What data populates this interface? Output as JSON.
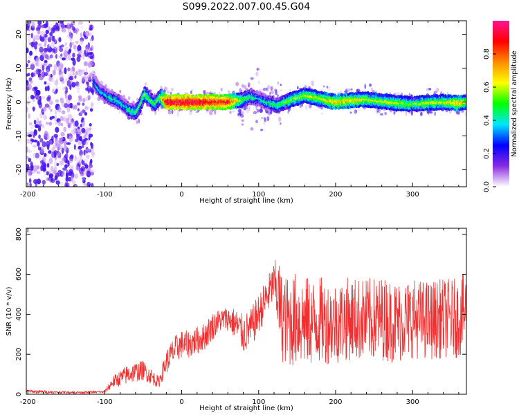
{
  "title": "S099.2022.007.00.45.G04",
  "chart_data": [
    {
      "type": "heatmap",
      "xlabel": "Height of straight line (km)",
      "ylabel": "Frequency (Hz)",
      "xlim": [
        -202,
        370
      ],
      "ylim": [
        -25,
        24
      ],
      "xticks": [
        -200,
        -100,
        0,
        100,
        200,
        300
      ],
      "yticks": [
        -20,
        -10,
        0,
        10,
        20
      ],
      "colorbar": {
        "label": "Normalized spectral amplitude",
        "range": [
          0,
          1
        ],
        "ticks": [
          "0.0",
          "0.2",
          "0.4",
          "0.6",
          "0.8"
        ],
        "colors": [
          "#ffffff",
          "#8a2be2",
          "#0000ff",
          "#00e5ff",
          "#00ff00",
          "#ffff00",
          "#ff8c00",
          "#ff0000",
          "#ff1493"
        ]
      },
      "noise_region_x": [
        -202,
        -115
      ],
      "ridge": {
        "x": [
          -115,
          -105,
          -95,
          -85,
          -75,
          -68,
          -60,
          -55,
          -48,
          -42,
          -35,
          -28,
          -20,
          0,
          20,
          40,
          60,
          75,
          90,
          100,
          110,
          125,
          140,
          160,
          180,
          200,
          220,
          240,
          260,
          280,
          300,
          320,
          340,
          360,
          370
        ],
        "y": [
          6,
          3,
          1.5,
          0.5,
          -1,
          -2.5,
          -3,
          -1.5,
          2.5,
          1,
          -0.5,
          1.5,
          0,
          0,
          0,
          0,
          0,
          0.5,
          1.5,
          1,
          0,
          -1,
          0.5,
          2,
          1,
          0,
          0.5,
          0.8,
          0.2,
          -0.3,
          -0.6,
          -0.2,
          0,
          -0.3,
          0
        ],
        "peak_amplitude": [
          0.35,
          0.4,
          0.4,
          0.45,
          0.4,
          0.45,
          0.5,
          0.5,
          0.55,
          0.5,
          0.5,
          0.55,
          0.95,
          0.95,
          0.95,
          0.9,
          0.9,
          0.6,
          0.45,
          0.4,
          0.45,
          0.5,
          0.55,
          0.6,
          0.6,
          0.7,
          0.65,
          0.6,
          0.6,
          0.6,
          0.55,
          0.6,
          0.6,
          0.7,
          0.6
        ]
      }
    },
    {
      "type": "line",
      "xlabel": "Height of straight line (km)",
      "ylabel": "SNR (10 * v/v)",
      "xlim": [
        -202,
        370
      ],
      "ylim": [
        0,
        830
      ],
      "xticks": [
        -200,
        -100,
        0,
        100,
        200,
        300
      ],
      "yticks": [
        0,
        200,
        400,
        600,
        800
      ],
      "color": "#f03030",
      "series": [
        {
          "x": [
            -200,
            -180,
            -160,
            -140,
            -120,
            -100,
            -90,
            -80,
            -70,
            -60,
            -50,
            -40,
            -30,
            -20,
            -10,
            0,
            10,
            20,
            30,
            40,
            50,
            60,
            70,
            80,
            90,
            100,
            110,
            120,
            125,
            130,
            140,
            150,
            160,
            170,
            180,
            190,
            200,
            220,
            240,
            260,
            280,
            300,
            320,
            340,
            360,
            370
          ],
          "mean": [
            15,
            12,
            10,
            10,
            10,
            12,
            60,
            80,
            100,
            110,
            120,
            90,
            60,
            160,
            220,
            250,
            250,
            270,
            290,
            340,
            370,
            380,
            350,
            300,
            330,
            400,
            480,
            560,
            500,
            380,
            360,
            380,
            360,
            360,
            370,
            360,
            360,
            380,
            370,
            380,
            360,
            380,
            370,
            380,
            380,
            420
          ],
          "noise": [
            8,
            8,
            6,
            6,
            6,
            6,
            30,
            40,
            50,
            50,
            50,
            40,
            30,
            60,
            70,
            70,
            70,
            70,
            70,
            70,
            60,
            60,
            80,
            100,
            100,
            100,
            100,
            100,
            200,
            220,
            230,
            240,
            230,
            220,
            220,
            210,
            210,
            210,
            210,
            210,
            210,
            200,
            200,
            200,
            200,
            200
          ]
        }
      ]
    }
  ]
}
